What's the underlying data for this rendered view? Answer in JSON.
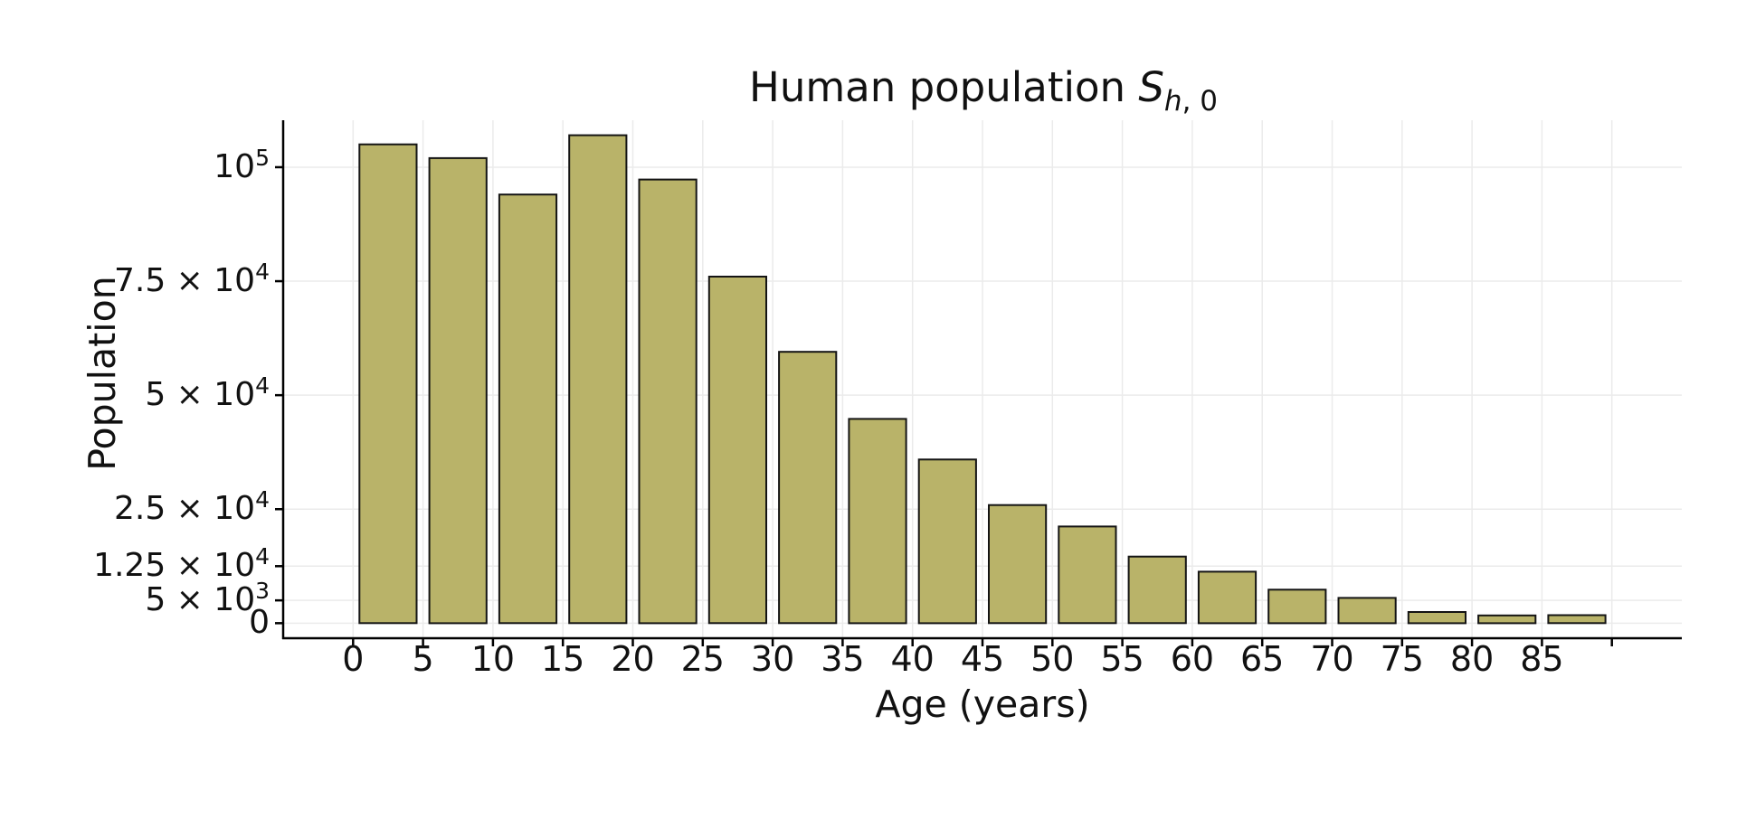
{
  "title": {
    "prefix": "Human population ",
    "var": "S",
    "sub_var": "h",
    "sub_rest": ", 0"
  },
  "chart_data": {
    "type": "bar",
    "title": "Human population S_{h,0}",
    "xlabel": "Age (years)",
    "ylabel": "Population",
    "bin_width": 5,
    "bin_starts": [
      0,
      5,
      10,
      15,
      20,
      25,
      30,
      35,
      40,
      45,
      50,
      55,
      60,
      65,
      70,
      75,
      80,
      85
    ],
    "categories": [
      "0-5",
      "5-10",
      "10-15",
      "15-20",
      "20-25",
      "25-30",
      "30-35",
      "35-40",
      "40-45",
      "45-50",
      "50-55",
      "55-60",
      "60-65",
      "65-70",
      "70-75",
      "75-80",
      "80-85",
      "85-90"
    ],
    "values": [
      105000,
      102000,
      94000,
      107000,
      97300,
      76000,
      59500,
      44800,
      35900,
      25900,
      21200,
      14600,
      11300,
      7350,
      5550,
      2450,
      1700,
      1750
    ],
    "bar_width_years": 4.09,
    "xlim": [
      -5,
      95
    ],
    "ylim": [
      -3300,
      110300
    ],
    "grid": true,
    "legend": "none",
    "x_ticks": [
      {
        "value": 0,
        "label": "0"
      },
      {
        "value": 5,
        "label": "5"
      },
      {
        "value": 10,
        "label": "10"
      },
      {
        "value": 15,
        "label": "15"
      },
      {
        "value": 20,
        "label": "20"
      },
      {
        "value": 25,
        "label": "25"
      },
      {
        "value": 30,
        "label": "30"
      },
      {
        "value": 35,
        "label": "35"
      },
      {
        "value": 40,
        "label": "40"
      },
      {
        "value": 45,
        "label": "45"
      },
      {
        "value": 50,
        "label": "50"
      },
      {
        "value": 55,
        "label": "55"
      },
      {
        "value": 60,
        "label": "60"
      },
      {
        "value": 65,
        "label": "65"
      },
      {
        "value": 70,
        "label": "70"
      },
      {
        "value": 75,
        "label": "75"
      },
      {
        "value": 80,
        "label": "80"
      },
      {
        "value": 85,
        "label": "85"
      },
      {
        "value": 90,
        "label": ""
      }
    ],
    "y_ticks": [
      {
        "value": 0,
        "main": "0",
        "sup": ""
      },
      {
        "value": 5000,
        "main": "5 × 10",
        "sup": "3"
      },
      {
        "value": 12500,
        "main": "1.25 × 10",
        "sup": "4"
      },
      {
        "value": 25000,
        "main": "2.5 × 10",
        "sup": "4"
      },
      {
        "value": 50000,
        "main": "5 × 10",
        "sup": "4"
      },
      {
        "value": 75000,
        "main": "7.5 × 10",
        "sup": "4"
      },
      {
        "value": 100000,
        "main": "10",
        "sup": "5"
      }
    ],
    "colors": {
      "bar_fill": "#b9b369",
      "bar_edge": "#141414",
      "grid": "#ebebeb",
      "axis": "#000000",
      "background": "#ffffff"
    }
  }
}
